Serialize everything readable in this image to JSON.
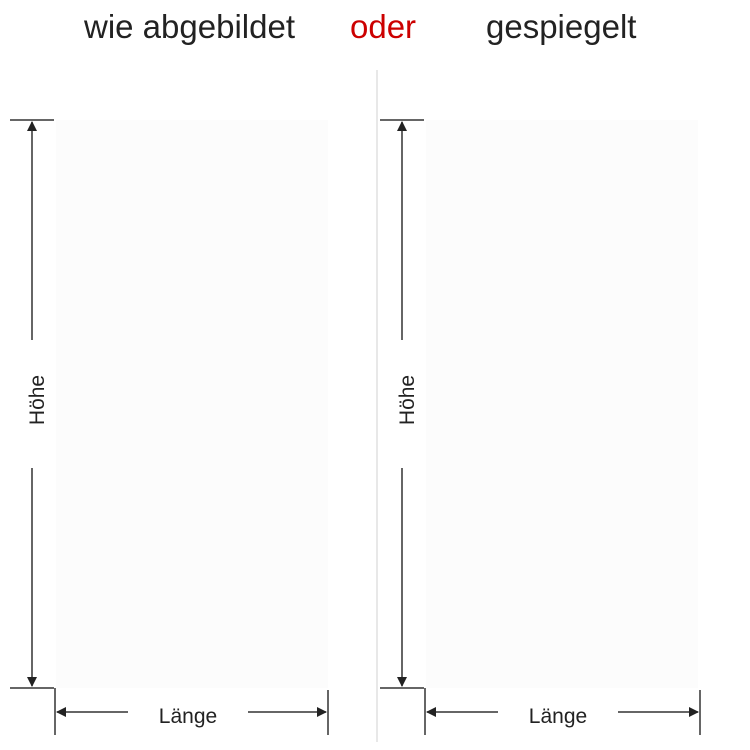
{
  "header": {
    "left": "wie abgebildet",
    "middle": "oder",
    "right": "gespiegelt"
  },
  "colors": {
    "accent": "#cc0000",
    "text": "#222222",
    "lines": "#333333",
    "divider": "#d0d0d0"
  },
  "panels": [
    {
      "height_label": "Höhe",
      "length_label": "Länge"
    },
    {
      "height_label": "Höhe",
      "length_label": "Länge"
    }
  ]
}
